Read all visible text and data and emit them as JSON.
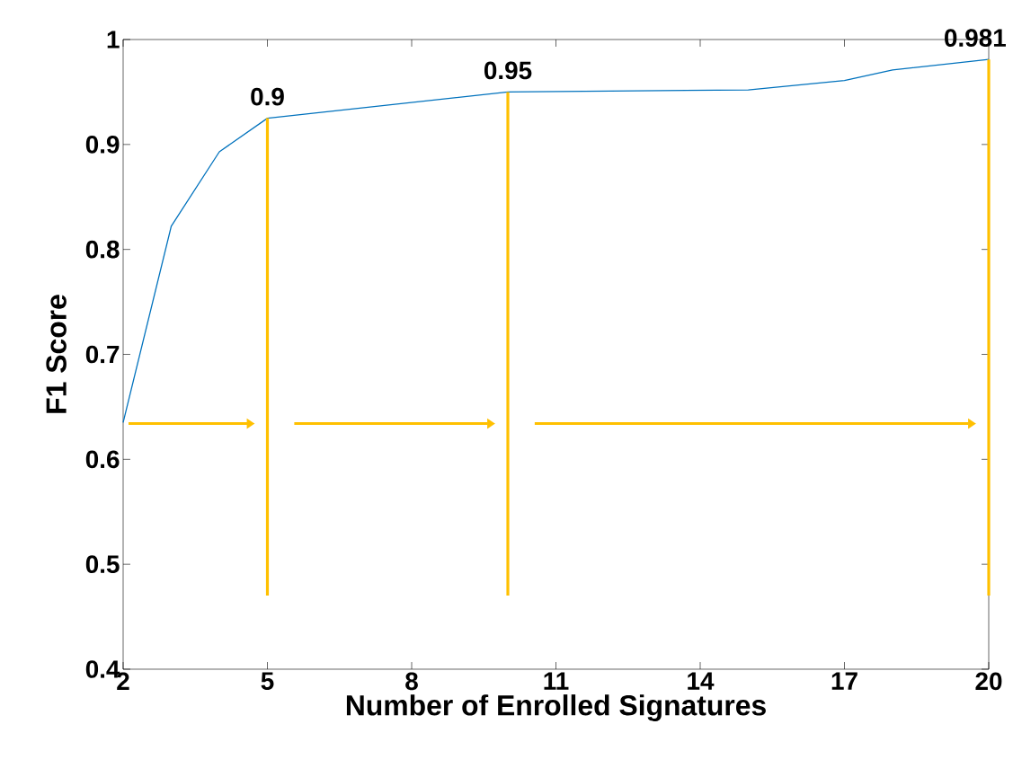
{
  "chart_data": {
    "type": "line",
    "xlabel": "Number of Enrolled Signatures",
    "ylabel": "F1 Score",
    "x": [
      2,
      3,
      4,
      5,
      10,
      15,
      17,
      18,
      20
    ],
    "series": [
      {
        "color": "#0072bd",
        "values": [
          0.635,
          0.822,
          0.893,
          0.925,
          0.95,
          0.952,
          0.961,
          0.971,
          0.981
        ]
      }
    ],
    "xlim": [
      2,
      20
    ],
    "xticks": [
      2,
      5,
      8,
      11,
      14,
      17,
      20
    ],
    "ylim": [
      0.4,
      1
    ],
    "yticks": [
      0.4,
      0.5,
      0.6,
      0.7,
      0.8,
      0.9,
      1
    ],
    "grid": false,
    "marker": "none",
    "line_style": "solid",
    "ref_lines": [
      {
        "axis": "x",
        "value": 5,
        "color": "#ffc000"
      },
      {
        "axis": "x",
        "value": 10,
        "color": "#ffc000"
      },
      {
        "axis": "x",
        "value": 20,
        "color": "#ffc000"
      }
    ],
    "annotations": [
      {
        "text": "0.9",
        "x": 5,
        "y": 0.925
      },
      {
        "text": "0.95",
        "x": 10,
        "y": 0.95
      },
      {
        "text": "0.981",
        "x": 20,
        "y": 0.981
      }
    ]
  }
}
